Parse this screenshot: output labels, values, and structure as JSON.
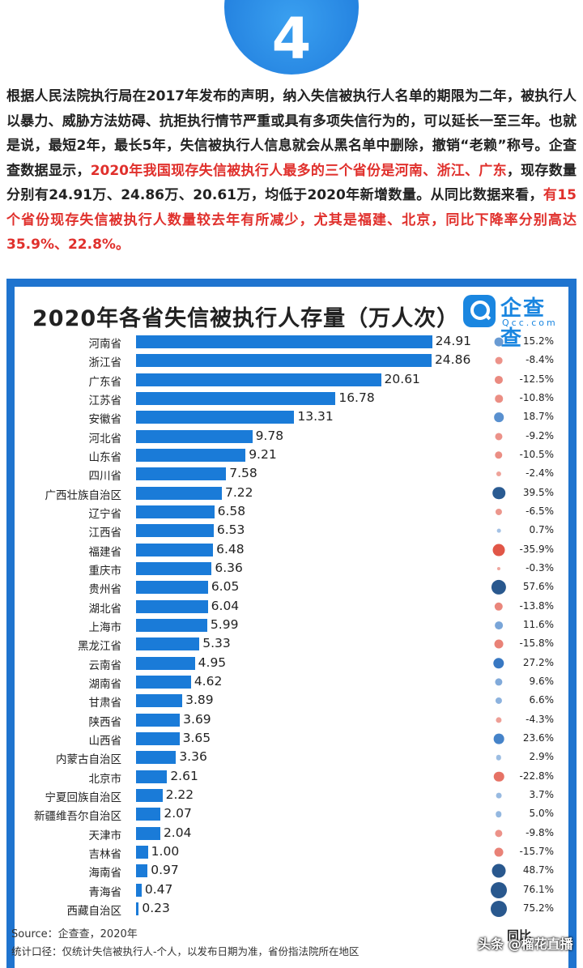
{
  "badge": "4",
  "intro": {
    "p1": "根据人民法院执行局在2017年发布的声明，纳入失信被执行人名单的期限为二年，被执行人以暴力、威胁方法妨碍、抗拒执行情节严重或具有多项失信行为的，可以延长一至三年。也就是说，最短2年，最长5年，失信被执行人信息就会从黑名单中删除，撤销“老赖”称号。企查查数据显示，",
    "p2": "2020年我国现存失信被执行人最多的三个省份是河南、浙江、广东",
    "p3": "，现存数量分别有24.91万、24.86万、20.61万，均低于2020年新增数量。从同比数据来看，",
    "p4": "有15个省份现存失信被执行人数量较去年有所减少，尤其是福建、北京，同比下降率分别高达35.9%、22.8%。"
  },
  "logo": {
    "name": "企查查",
    "domain": "Qcc.com"
  },
  "footer": {
    "source": "Source：企查查，2020年",
    "scope": "统计口径：仅统计失信被执行人-个人，以发布日期为准，省份指法院所在地区",
    "yoy_header": "同比",
    "watermark": "头条 @榴花直播"
  },
  "colors": {
    "bar": "#1a7bd8",
    "frame": "#1f74cf",
    "highlight": "#e0302c",
    "dot_positive": "#2e6ab8",
    "dot_negative": "#e05a4e"
  },
  "chart_data": {
    "type": "bar",
    "orientation": "horizontal",
    "title": "2020年各省失信被执行人存量（万人次）",
    "categories": [
      "河南省",
      "浙江省",
      "广东省",
      "江苏省",
      "安徽省",
      "河北省",
      "山东省",
      "四川省",
      "广西壮族自治区",
      "辽宁省",
      "江西省",
      "福建省",
      "重庆市",
      "贵州省",
      "湖北省",
      "上海市",
      "黑龙江省",
      "云南省",
      "湖南省",
      "甘肃省",
      "陕西省",
      "山西省",
      "内蒙古自治区",
      "北京市",
      "宁夏回族自治区",
      "新疆维吾尔自治区",
      "天津市",
      "吉林省",
      "海南省",
      "青海省",
      "西藏自治区"
    ],
    "values": [
      24.91,
      24.86,
      20.61,
      16.78,
      13.31,
      9.78,
      9.21,
      7.58,
      7.22,
      6.58,
      6.53,
      6.48,
      6.36,
      6.05,
      6.04,
      5.99,
      5.33,
      4.95,
      4.62,
      3.89,
      3.69,
      3.65,
      3.36,
      2.61,
      2.22,
      2.07,
      2.04,
      1.0,
      0.97,
      0.47,
      0.23
    ],
    "value_labels": [
      "24.91",
      "24.86",
      "20.61",
      "16.78",
      "13.31",
      "9.78",
      "9.21",
      "7.58",
      "7.22",
      "6.58",
      "6.53",
      "6.48",
      "6.36",
      "6.05",
      "6.04",
      "5.99",
      "5.33",
      "4.95",
      "4.62",
      "3.89",
      "3.69",
      "3.65",
      "3.36",
      "2.61",
      "2.22",
      "2.07",
      "2.04",
      "1.00",
      "0.97",
      "0.47",
      "0.23"
    ],
    "yoy": [
      15.2,
      -8.4,
      -12.5,
      -10.8,
      18.7,
      -9.2,
      -10.5,
      -2.4,
      39.5,
      -6.5,
      0.7,
      -35.9,
      -0.3,
      57.6,
      -13.8,
      11.6,
      -15.8,
      27.2,
      9.6,
      6.6,
      -4.3,
      23.6,
      2.9,
      -22.8,
      3.7,
      5.0,
      -9.8,
      -15.7,
      48.7,
      76.1,
      75.2
    ],
    "yoy_labels": [
      "15.2%",
      "-8.4%",
      "-12.5%",
      "-10.8%",
      "18.7%",
      "-9.2%",
      "-10.5%",
      "-2.4%",
      "39.5%",
      "-6.5%",
      "0.7%",
      "-35.9%",
      "-0.3%",
      "57.6%",
      "-13.8%",
      "11.6%",
      "-15.8%",
      "27.2%",
      "9.6%",
      "6.6%",
      "-4.3%",
      "23.6%",
      "2.9%",
      "-22.8%",
      "3.7%",
      "5.0%",
      "-9.8%",
      "-15.7%",
      "48.7%",
      "76.1%",
      "75.2%"
    ],
    "yoy_label": "同比",
    "xlim": [
      0,
      25
    ]
  }
}
